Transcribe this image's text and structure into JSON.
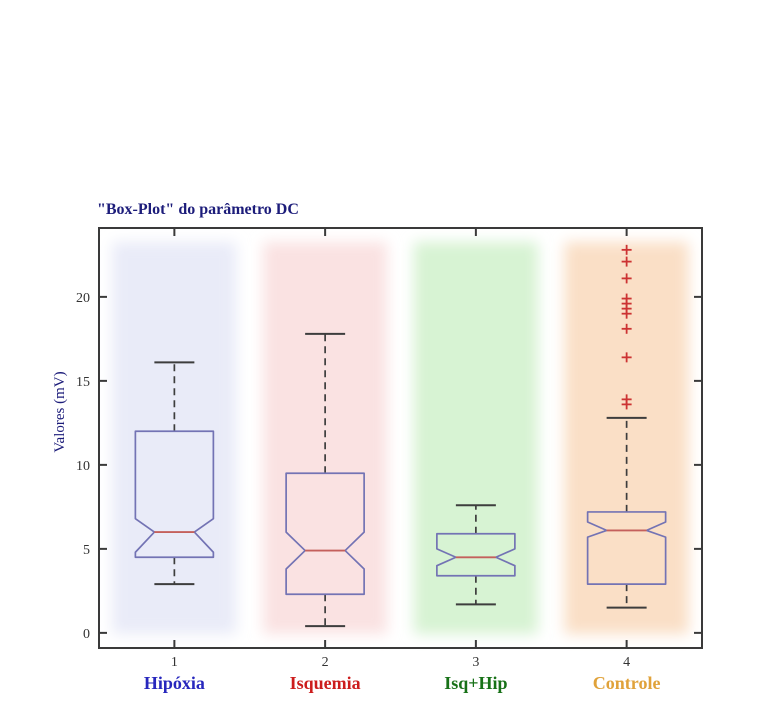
{
  "figure": {
    "title": "\"Box-Plot\" do parâmetro DC",
    "ylabel": "Valores (mV)"
  },
  "chart_data": {
    "type": "boxplot",
    "title": "\"Box-Plot\" do parâmetro DC",
    "xlabel": "",
    "ylabel": "Valores (mV)",
    "ylim": [
      -0.9,
      24.1
    ],
    "yticks": [
      0,
      5,
      10,
      15,
      20
    ],
    "xticks": [
      "1",
      "2",
      "3",
      "4"
    ],
    "grid": false,
    "notched": true,
    "legend": "none",
    "colors": {
      "frame": "#3a3a3a",
      "tick_label": "#333333",
      "title": "#1c1c7a",
      "box_outline": "#7373b4",
      "median": "#c4605c",
      "whisker": "#3d3d3d",
      "outlier": "#cc3333"
    },
    "groups": [
      {
        "x": 1,
        "tick_label": "1",
        "name": "Hipóxia",
        "name_color": "#2727bd",
        "band_color": "#e9ebf8",
        "whisker_low": 2.9,
        "q1": 4.5,
        "median": 6.0,
        "q3": 12.0,
        "whisker_high": 16.1,
        "notch_low": 4.8,
        "notch_high": 6.8,
        "outliers": []
      },
      {
        "x": 2,
        "tick_label": "2",
        "name": "Isquemia",
        "name_color": "#cc1c1c",
        "band_color": "#fae2e2",
        "whisker_low": 0.4,
        "q1": 2.3,
        "median": 4.9,
        "q3": 9.5,
        "whisker_high": 17.8,
        "notch_low": 3.8,
        "notch_high": 6.0,
        "outliers": []
      },
      {
        "x": 3,
        "tick_label": "3",
        "name": "Isq+Hip",
        "name_color": "#177117",
        "band_color": "#d7f3d3",
        "whisker_low": 1.7,
        "q1": 3.4,
        "median": 4.5,
        "q3": 5.9,
        "whisker_high": 7.6,
        "notch_low": 4.0,
        "notch_high": 5.0,
        "outliers": []
      },
      {
        "x": 4,
        "tick_label": "4",
        "name": "Controle",
        "name_color": "#e0a23a",
        "band_color": "#fadfc6",
        "whisker_low": 1.5,
        "q1": 2.9,
        "median": 6.1,
        "q3": 7.2,
        "whisker_high": 12.8,
        "notch_low": 5.7,
        "notch_high": 6.6,
        "outliers": [
          22.8,
          22.1,
          21.1,
          19.9,
          19.6,
          19.3,
          19.0,
          18.1,
          16.4,
          13.9,
          13.6
        ]
      }
    ]
  }
}
